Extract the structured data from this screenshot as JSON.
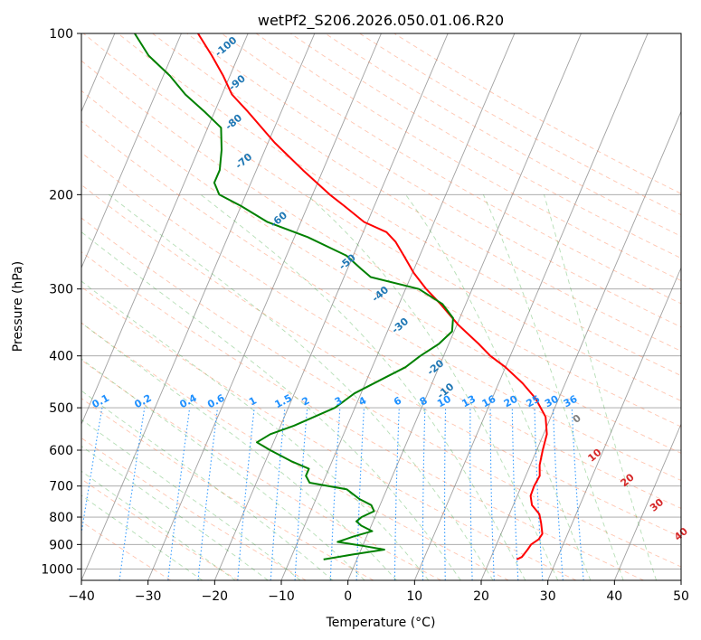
{
  "chart_data": {
    "type": "line",
    "subtype": "skew-T log-P diagram",
    "title": "wetPf2_S206.2026.050.01.06.R20",
    "xlabel": "Temperature (°C)",
    "ylabel": "Pressure (hPa)",
    "xlim": [
      -40,
      50
    ],
    "ylim": [
      1050,
      100
    ],
    "y_scale": "log",
    "x_ticks": [
      -40,
      -30,
      -20,
      -10,
      0,
      10,
      20,
      30,
      40,
      50
    ],
    "y_ticks": [
      1000,
      900,
      800,
      700,
      600,
      500,
      400,
      300,
      200,
      100
    ],
    "grid": true,
    "colors": {
      "temperature": "#ff0000",
      "dewpoint": "#008000",
      "isotherm": "#808080",
      "dry_adiabat": "#ff7f50",
      "moist_adiabat": "#2ca02c",
      "mixing_ratio": "#1e90ff",
      "theta_label": "#d62728",
      "tropo_label": "#1f77b4",
      "frame": "#000000"
    },
    "series": [
      {
        "key": "temperature",
        "points": [
          {
            "p": 960,
            "t": 24.0
          },
          {
            "p": 950,
            "t": 24.6
          },
          {
            "p": 920,
            "t": 25.0
          },
          {
            "p": 900,
            "t": 25.2
          },
          {
            "p": 880,
            "t": 26.0
          },
          {
            "p": 860,
            "t": 26.2
          },
          {
            "p": 820,
            "t": 25.3
          },
          {
            "p": 790,
            "t": 24.5
          },
          {
            "p": 760,
            "t": 22.8
          },
          {
            "p": 730,
            "t": 22.0
          },
          {
            "p": 700,
            "t": 21.9
          },
          {
            "p": 670,
            "t": 22.1
          },
          {
            "p": 640,
            "t": 21.4
          },
          {
            "p": 600,
            "t": 20.9
          },
          {
            "p": 560,
            "t": 20.5
          },
          {
            "p": 520,
            "t": 19.2
          },
          {
            "p": 480,
            "t": 16.5
          },
          {
            "p": 450,
            "t": 13.6
          },
          {
            "p": 420,
            "t": 10.0
          },
          {
            "p": 400,
            "t": 7.0
          },
          {
            "p": 380,
            "t": 4.5
          },
          {
            "p": 350,
            "t": 0.2
          },
          {
            "p": 320,
            "t": -3.8
          },
          {
            "p": 300,
            "t": -6.9
          },
          {
            "p": 280,
            "t": -9.8
          },
          {
            "p": 260,
            "t": -12.4
          },
          {
            "p": 245,
            "t": -14.5
          },
          {
            "p": 235,
            "t": -16.5
          },
          {
            "p": 225,
            "t": -20.5
          },
          {
            "p": 210,
            "t": -24.5
          },
          {
            "p": 200,
            "t": -27.4
          },
          {
            "p": 180,
            "t": -33.0
          },
          {
            "p": 160,
            "t": -39.0
          },
          {
            "p": 140,
            "t": -45.0
          },
          {
            "p": 130,
            "t": -48.5
          },
          {
            "p": 120,
            "t": -51.0
          },
          {
            "p": 110,
            "t": -54.0
          },
          {
            "p": 100,
            "t": -57.5
          }
        ]
      },
      {
        "key": "dewpoint",
        "points": [
          {
            "p": 960,
            "t": -5.0
          },
          {
            "p": 940,
            "t": -1.0
          },
          {
            "p": 920,
            "t": 3.5
          },
          {
            "p": 905,
            "t": 0.0
          },
          {
            "p": 890,
            "t": -4.0
          },
          {
            "p": 870,
            "t": -2.0
          },
          {
            "p": 850,
            "t": 0.5
          },
          {
            "p": 830,
            "t": -1.5
          },
          {
            "p": 815,
            "t": -2.5
          },
          {
            "p": 800,
            "t": -2.0
          },
          {
            "p": 780,
            "t": -0.5
          },
          {
            "p": 760,
            "t": -1.3
          },
          {
            "p": 740,
            "t": -3.5
          },
          {
            "p": 710,
            "t": -6.0
          },
          {
            "p": 690,
            "t": -12.0
          },
          {
            "p": 670,
            "t": -13.0
          },
          {
            "p": 650,
            "t": -13.0
          },
          {
            "p": 630,
            "t": -16.0
          },
          {
            "p": 600,
            "t": -20.0
          },
          {
            "p": 580,
            "t": -22.5
          },
          {
            "p": 560,
            "t": -21.0
          },
          {
            "p": 540,
            "t": -18.0
          },
          {
            "p": 500,
            "t": -13.0
          },
          {
            "p": 470,
            "t": -11.0
          },
          {
            "p": 440,
            "t": -7.5
          },
          {
            "p": 420,
            "t": -5.0
          },
          {
            "p": 400,
            "t": -3.5
          },
          {
            "p": 380,
            "t": -1.5
          },
          {
            "p": 360,
            "t": -0.3
          },
          {
            "p": 340,
            "t": -1.0
          },
          {
            "p": 320,
            "t": -3.5
          },
          {
            "p": 300,
            "t": -8.0
          },
          {
            "p": 285,
            "t": -16.0
          },
          {
            "p": 275,
            "t": -18.0
          },
          {
            "p": 260,
            "t": -21.0
          },
          {
            "p": 240,
            "t": -28.0
          },
          {
            "p": 225,
            "t": -35.0
          },
          {
            "p": 210,
            "t": -40.0
          },
          {
            "p": 200,
            "t": -44.0
          },
          {
            "p": 190,
            "t": -45.5
          },
          {
            "p": 180,
            "t": -45.5
          },
          {
            "p": 165,
            "t": -46.5
          },
          {
            "p": 150,
            "t": -48.0
          },
          {
            "p": 140,
            "t": -51.5
          },
          {
            "p": 130,
            "t": -55.5
          },
          {
            "p": 120,
            "t": -59.0
          },
          {
            "p": 110,
            "t": -63.5
          },
          {
            "p": 100,
            "t": -67.0
          }
        ]
      }
    ],
    "mixing_ratio_labels": [
      "0.1",
      "0.2",
      "0.4",
      "0.6",
      "1",
      "1.5",
      "2",
      "3",
      "4",
      "6",
      "8",
      "10",
      "13",
      "16",
      "20",
      "25",
      "30",
      "36"
    ],
    "mixing_ratio_values": [
      0.1,
      0.2,
      0.4,
      0.6,
      1,
      1.5,
      2,
      3,
      4,
      6,
      8,
      10,
      13,
      16,
      20,
      25,
      30,
      36
    ],
    "theta_labels": [
      "0",
      "10",
      "20",
      "30",
      "40"
    ],
    "tropopause_labels": [
      "-100",
      "-90",
      "-80",
      "-70",
      "-60",
      "-50",
      "-40",
      "-30",
      "-20",
      "-10"
    ],
    "tropopause_label_values": [
      -100,
      -90,
      -80,
      -70,
      -60,
      -50,
      -40,
      -30,
      -20,
      -10
    ]
  }
}
